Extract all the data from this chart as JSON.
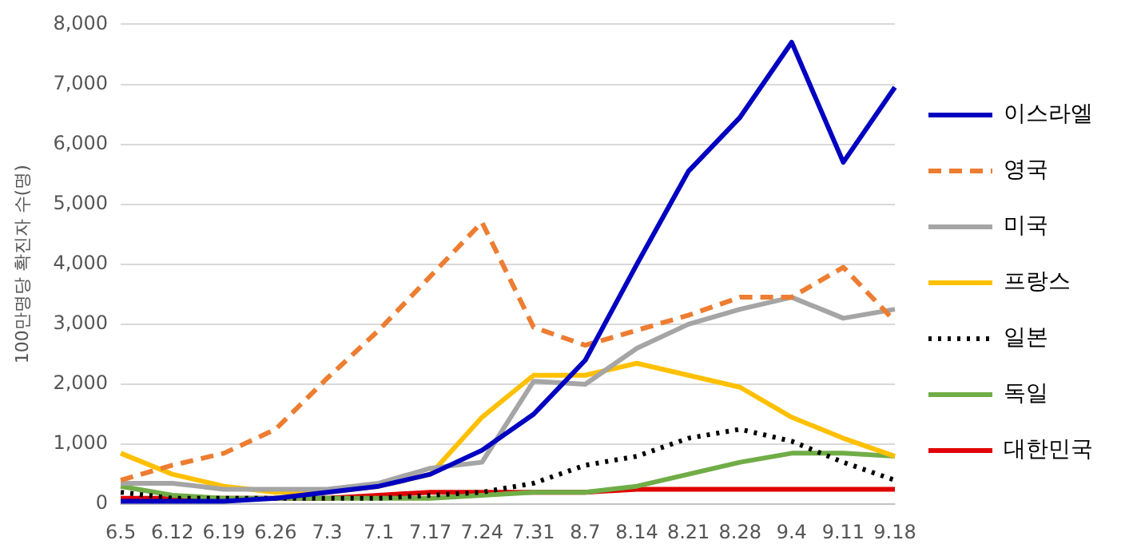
{
  "chart_data": {
    "type": "line",
    "ylabel": "100만명당 확진자 수(명)",
    "categories": [
      "6.5",
      "6.12",
      "6.19",
      "6.26",
      "7.3",
      "7.1",
      "7.17",
      "7.24",
      "7.31",
      "8.7",
      "8.14",
      "8.21",
      "8.28",
      "9.4",
      "9.11",
      "9.18"
    ],
    "series": [
      {
        "name": "이스라엘",
        "color": "#0000c0",
        "values": [
          50,
          50,
          50,
          100,
          200,
          300,
          500,
          900,
          1500,
          2400,
          4000,
          5550,
          6450,
          7700,
          5700,
          6950
        ]
      },
      {
        "name": "영국",
        "color": "#ed7d31",
        "line_style": "dashed",
        "values": [
          400,
          650,
          850,
          1250,
          2100,
          2900,
          3800,
          4700,
          2950,
          2650,
          2900,
          3150,
          3450,
          3450,
          3950,
          3050
        ]
      },
      {
        "name": "미국",
        "color": "#a5a5a5",
        "values": [
          350,
          350,
          250,
          250,
          250,
          350,
          600,
          700,
          2050,
          2000,
          2600,
          3000,
          3250,
          3450,
          3100,
          3250
        ]
      },
      {
        "name": "프랑스",
        "color": "#ffc000",
        "values": [
          850,
          500,
          300,
          200,
          200,
          300,
          500,
          1450,
          2150,
          2150,
          2350,
          2150,
          1950,
          1450,
          1100,
          800
        ]
      },
      {
        "name": "일본",
        "color": "#000000",
        "line_style": "dotted",
        "values": [
          200,
          100,
          100,
          100,
          100,
          100,
          150,
          200,
          350,
          650,
          800,
          1100,
          1250,
          1050,
          700,
          400
        ]
      },
      {
        "name": "독일",
        "color": "#70ad47",
        "values": [
          300,
          150,
          100,
          100,
          100,
          100,
          100,
          150,
          200,
          200,
          300,
          500,
          700,
          850,
          850,
          800
        ]
      },
      {
        "name": "대한민국",
        "color": "#e00000",
        "values": [
          100,
          100,
          100,
          100,
          100,
          150,
          200,
          200,
          200,
          200,
          250,
          250,
          250,
          250,
          250,
          250
        ]
      }
    ],
    "ylim": [
      0,
      8000
    ],
    "yticks": [
      0,
      {
        "value": 1000,
        "label": "1,000"
      },
      {
        "value": 2000,
        "label": "2,000"
      },
      {
        "value": 3000,
        "label": "3,000"
      },
      {
        "value": 4000,
        "label": "4,000"
      },
      {
        "value": 5000,
        "label": "5,000"
      },
      {
        "value": 6000,
        "label": "6,000"
      },
      {
        "value": 7000,
        "label": "7,000"
      },
      {
        "value": 8000,
        "label": "8,000"
      }
    ],
    "grid": "y",
    "legend": "right",
    "marker": "none",
    "line_style": "solid"
  }
}
